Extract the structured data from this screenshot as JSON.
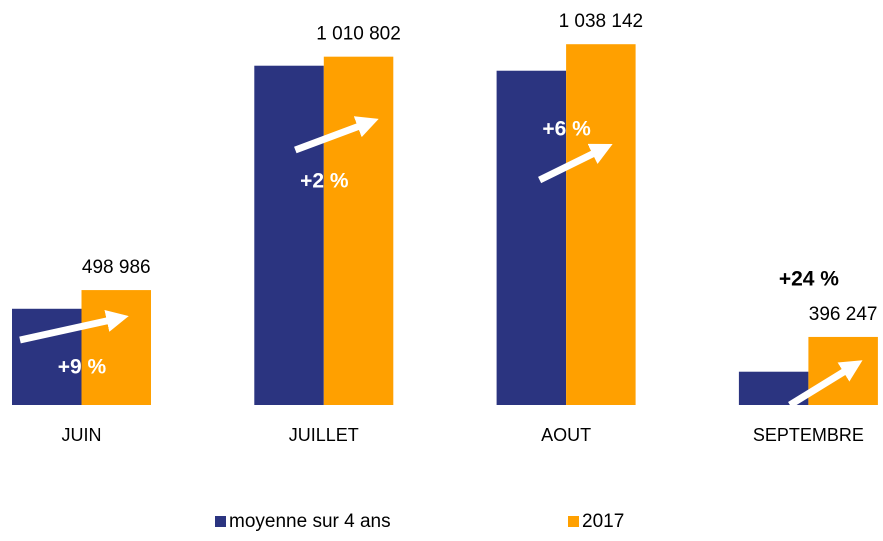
{
  "chart_data": {
    "type": "bar",
    "categories": [
      "JUIN",
      "JUILLET",
      "AOUT",
      "SEPTEMBRE"
    ],
    "series": [
      {
        "name": "moyenne sur 4 ans",
        "color": "#2b3480",
        "values": [
          458000,
          991000,
          980000,
          320000
        ]
      },
      {
        "name": "2017",
        "color": "#ffa000",
        "values": [
          498986,
          1010802,
          1038142,
          396247
        ],
        "value_labels": [
          "498 986",
          "1 010 802",
          "1 038 142",
          "396 247"
        ]
      }
    ],
    "annotations": [
      "+9 %",
      "+2 %",
      "+6 %",
      "+24 %"
    ],
    "ylim": [
      247000,
      1100000
    ],
    "grid": false
  }
}
